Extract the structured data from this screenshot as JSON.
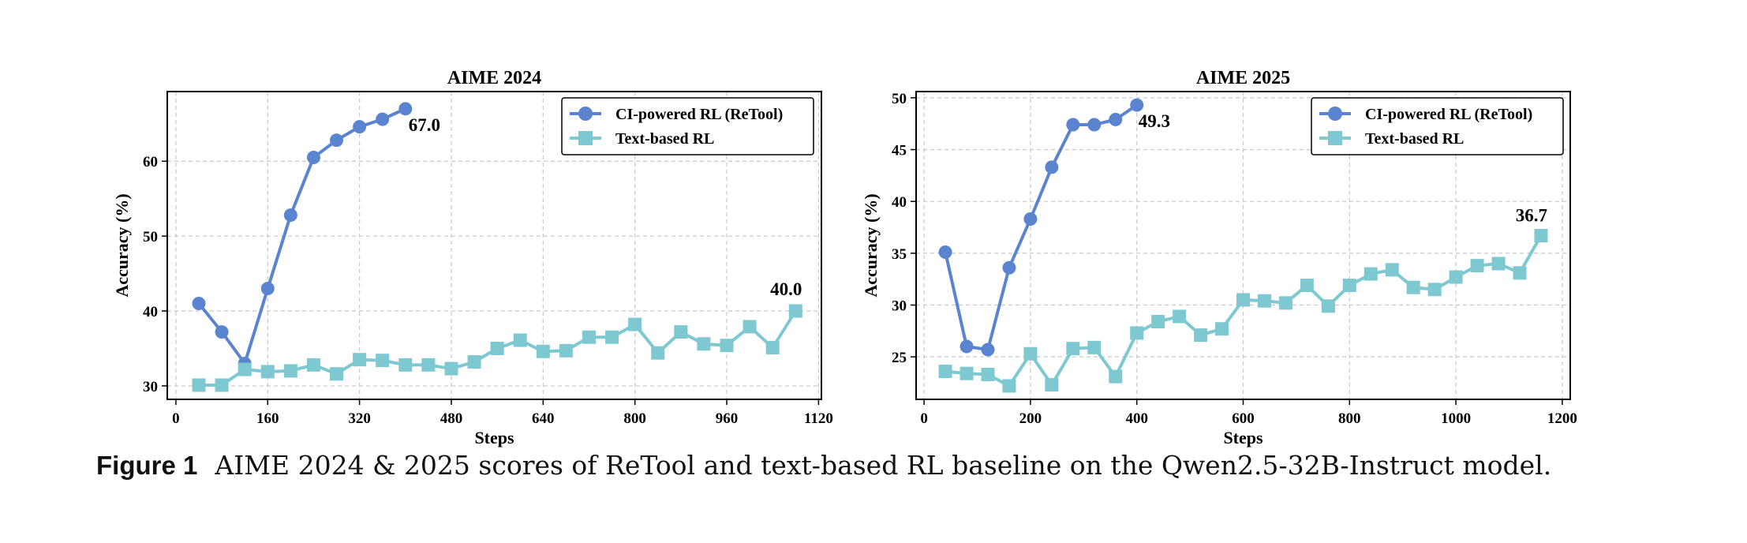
{
  "caption": {
    "label": "Figure 1",
    "text": "AIME 2024 & 2025 scores of ReTool and text-based RL baseline on the Qwen2.5-32B-Instruct model."
  },
  "colors": {
    "retool": "#5b84d0",
    "textrl": "#7ec8d2",
    "grid": "#c8c8c8",
    "axis": "#000000"
  },
  "chart_data": [
    {
      "type": "line",
      "title": "AIME 2024",
      "xlabel": "Steps",
      "ylabel": "Accuracy (%)",
      "xlim": [
        -15,
        1125
      ],
      "ylim": [
        28.2,
        69.3
      ],
      "xticks": [
        0,
        160,
        320,
        480,
        640,
        800,
        960,
        1120
      ],
      "yticks": [
        30,
        40,
        50,
        60
      ],
      "grid": true,
      "legend": "top-right",
      "series": [
        {
          "name": "CI-powered RL (ReTool)",
          "marker": "circle",
          "x": [
            40,
            80,
            120,
            160,
            200,
            240,
            280,
            320,
            360,
            400
          ],
          "y": [
            41.0,
            37.2,
            33.0,
            43.0,
            52.8,
            60.5,
            62.8,
            64.6,
            65.6,
            67.0
          ],
          "end_label": "67.0"
        },
        {
          "name": "Text-based RL",
          "marker": "square",
          "x": [
            40,
            80,
            120,
            160,
            200,
            240,
            280,
            320,
            360,
            400,
            440,
            480,
            520,
            560,
            600,
            640,
            680,
            720,
            760,
            800,
            840,
            880,
            920,
            960,
            1000,
            1040,
            1080
          ],
          "y": [
            30.1,
            30.1,
            32.2,
            31.9,
            32.0,
            32.8,
            31.6,
            33.5,
            33.4,
            32.8,
            32.8,
            32.3,
            33.2,
            35.0,
            36.1,
            34.6,
            34.7,
            36.5,
            36.5,
            38.2,
            34.4,
            37.2,
            35.6,
            35.4,
            37.9,
            35.1,
            40.0
          ],
          "end_label": "40.0"
        }
      ]
    },
    {
      "type": "line",
      "title": "AIME 2025",
      "xlabel": "Steps",
      "ylabel": "Accuracy (%)",
      "xlim": [
        -15,
        1215
      ],
      "ylim": [
        20.9,
        50.6
      ],
      "xticks": [
        0,
        200,
        400,
        600,
        800,
        1000,
        1200
      ],
      "yticks": [
        25,
        30,
        35,
        40,
        45,
        50
      ],
      "grid": true,
      "legend": "top-right",
      "series": [
        {
          "name": "CI-powered RL (ReTool)",
          "marker": "circle",
          "x": [
            40,
            80,
            120,
            160,
            200,
            240,
            280,
            320,
            360,
            400
          ],
          "y": [
            35.1,
            26.0,
            25.7,
            33.6,
            38.3,
            43.3,
            47.4,
            47.4,
            47.9,
            49.3
          ],
          "end_label": "49.3"
        },
        {
          "name": "Text-based RL",
          "marker": "square",
          "x": [
            40,
            80,
            120,
            160,
            200,
            240,
            280,
            320,
            360,
            400,
            440,
            480,
            520,
            560,
            600,
            640,
            680,
            720,
            760,
            800,
            840,
            880,
            920,
            960,
            1000,
            1040,
            1080,
            1120,
            1160
          ],
          "y": [
            23.6,
            23.4,
            23.3,
            22.2,
            25.3,
            22.3,
            25.8,
            25.9,
            23.1,
            27.3,
            28.4,
            28.9,
            27.1,
            27.7,
            30.5,
            30.4,
            30.2,
            31.9,
            29.9,
            31.9,
            33.0,
            33.4,
            31.7,
            31.5,
            32.7,
            33.8,
            34.0,
            33.1,
            36.7
          ],
          "end_label": "36.7"
        }
      ]
    }
  ]
}
